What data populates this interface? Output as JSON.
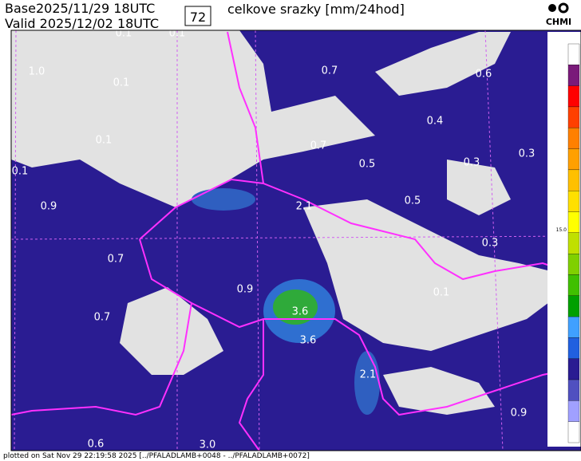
{
  "header": {
    "base": "Base2025/11/29 18UTC",
    "valid": "Valid 2025/12/02 18UTC",
    "step": "72",
    "title": "celkove srazky [mm/24hod]",
    "logo": "CHMI"
  },
  "map": {
    "labels": [
      "0.1",
      "0.1",
      "1.0",
      "0.1",
      "0.7",
      "0.6",
      "0.4",
      "0.1",
      "0.7",
      "0.3",
      "0.1",
      "0.5",
      "0.3",
      "0.9",
      "2.1",
      "0.5",
      "0.3",
      "0.7",
      "0.9",
      "3.6",
      "0.9",
      "0.1",
      "0.7",
      "3.6",
      "2.1",
      "0.9",
      "0.",
      "0.6",
      "3.0"
    ]
  },
  "legend": {
    "labels": [
      "15.0"
    ]
  },
  "footer": {
    "text": "plotted on Sat Nov 29 22:19:58 2025 [../PFALADLAMB+0048 - ../PFALADLAMB+0072]"
  }
}
